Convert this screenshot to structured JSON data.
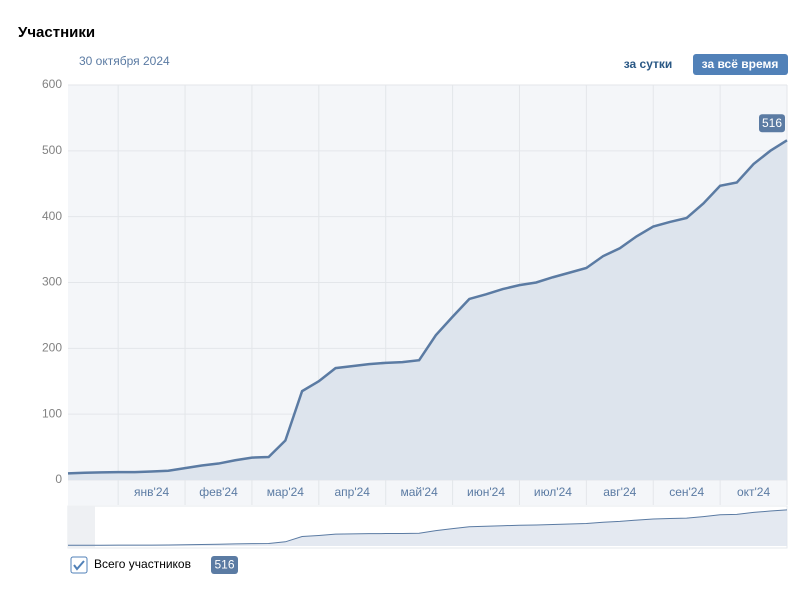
{
  "header": {
    "title": "Участники",
    "date": "30 октября 2024",
    "buttons": [
      "за сутки",
      "за всё время"
    ]
  },
  "chart_data": {
    "type": "area",
    "categories": [
      null,
      null,
      null,
      null,
      null,
      "янв'24",
      null,
      null,
      null,
      "фев'24",
      null,
      null,
      null,
      "мар'24",
      null,
      null,
      null,
      "апр'24",
      null,
      null,
      null,
      "май'24",
      null,
      null,
      null,
      "июн'24",
      null,
      null,
      null,
      "июл'24",
      null,
      null,
      null,
      "авг'24",
      null,
      null,
      null,
      "сен'24",
      null,
      null,
      null,
      "окт'24",
      null,
      null
    ],
    "series": [
      {
        "name": "Всего участников",
        "color": "#5b7ba3",
        "fill": "#dde4ed",
        "values": [
          10,
          11,
          11.5,
          12,
          12,
          13,
          14,
          18,
          22,
          25,
          30,
          34,
          35,
          60,
          135,
          150,
          170,
          173,
          176,
          178,
          179,
          182,
          220,
          248,
          275,
          282,
          290,
          296,
          300,
          308,
          315,
          322,
          340,
          352,
          370,
          385,
          392,
          398,
          420,
          447,
          452,
          480,
          500,
          516
        ]
      }
    ],
    "ylim": [
      0,
      600
    ],
    "yticks": [
      0,
      100,
      200,
      300,
      400,
      500,
      600
    ],
    "grid": true
  }
}
